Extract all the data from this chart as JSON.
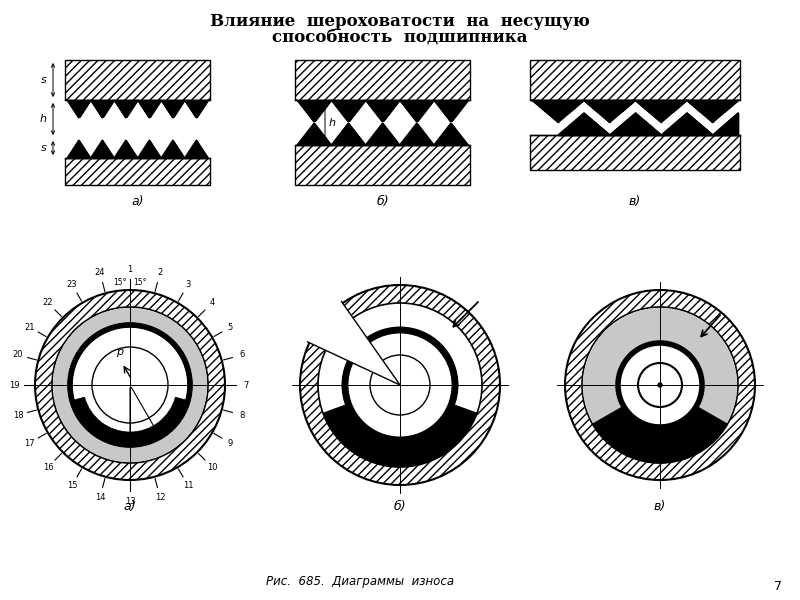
{
  "title_line1": "Влияние  шероховатости  на  несущую",
  "title_line2": "способность  подшипника",
  "caption": "Рис.  685.  Диаграммы  износа",
  "page_number": "7",
  "bg_color": "#ffffff",
  "polar_labels": [
    "1",
    "2",
    "3",
    "4",
    "5",
    "6",
    "7",
    "8",
    "9",
    "10",
    "11",
    "12",
    "13",
    "14",
    "15",
    "16",
    "17",
    "18",
    "19",
    "20",
    "21",
    "22",
    "23",
    "24"
  ]
}
